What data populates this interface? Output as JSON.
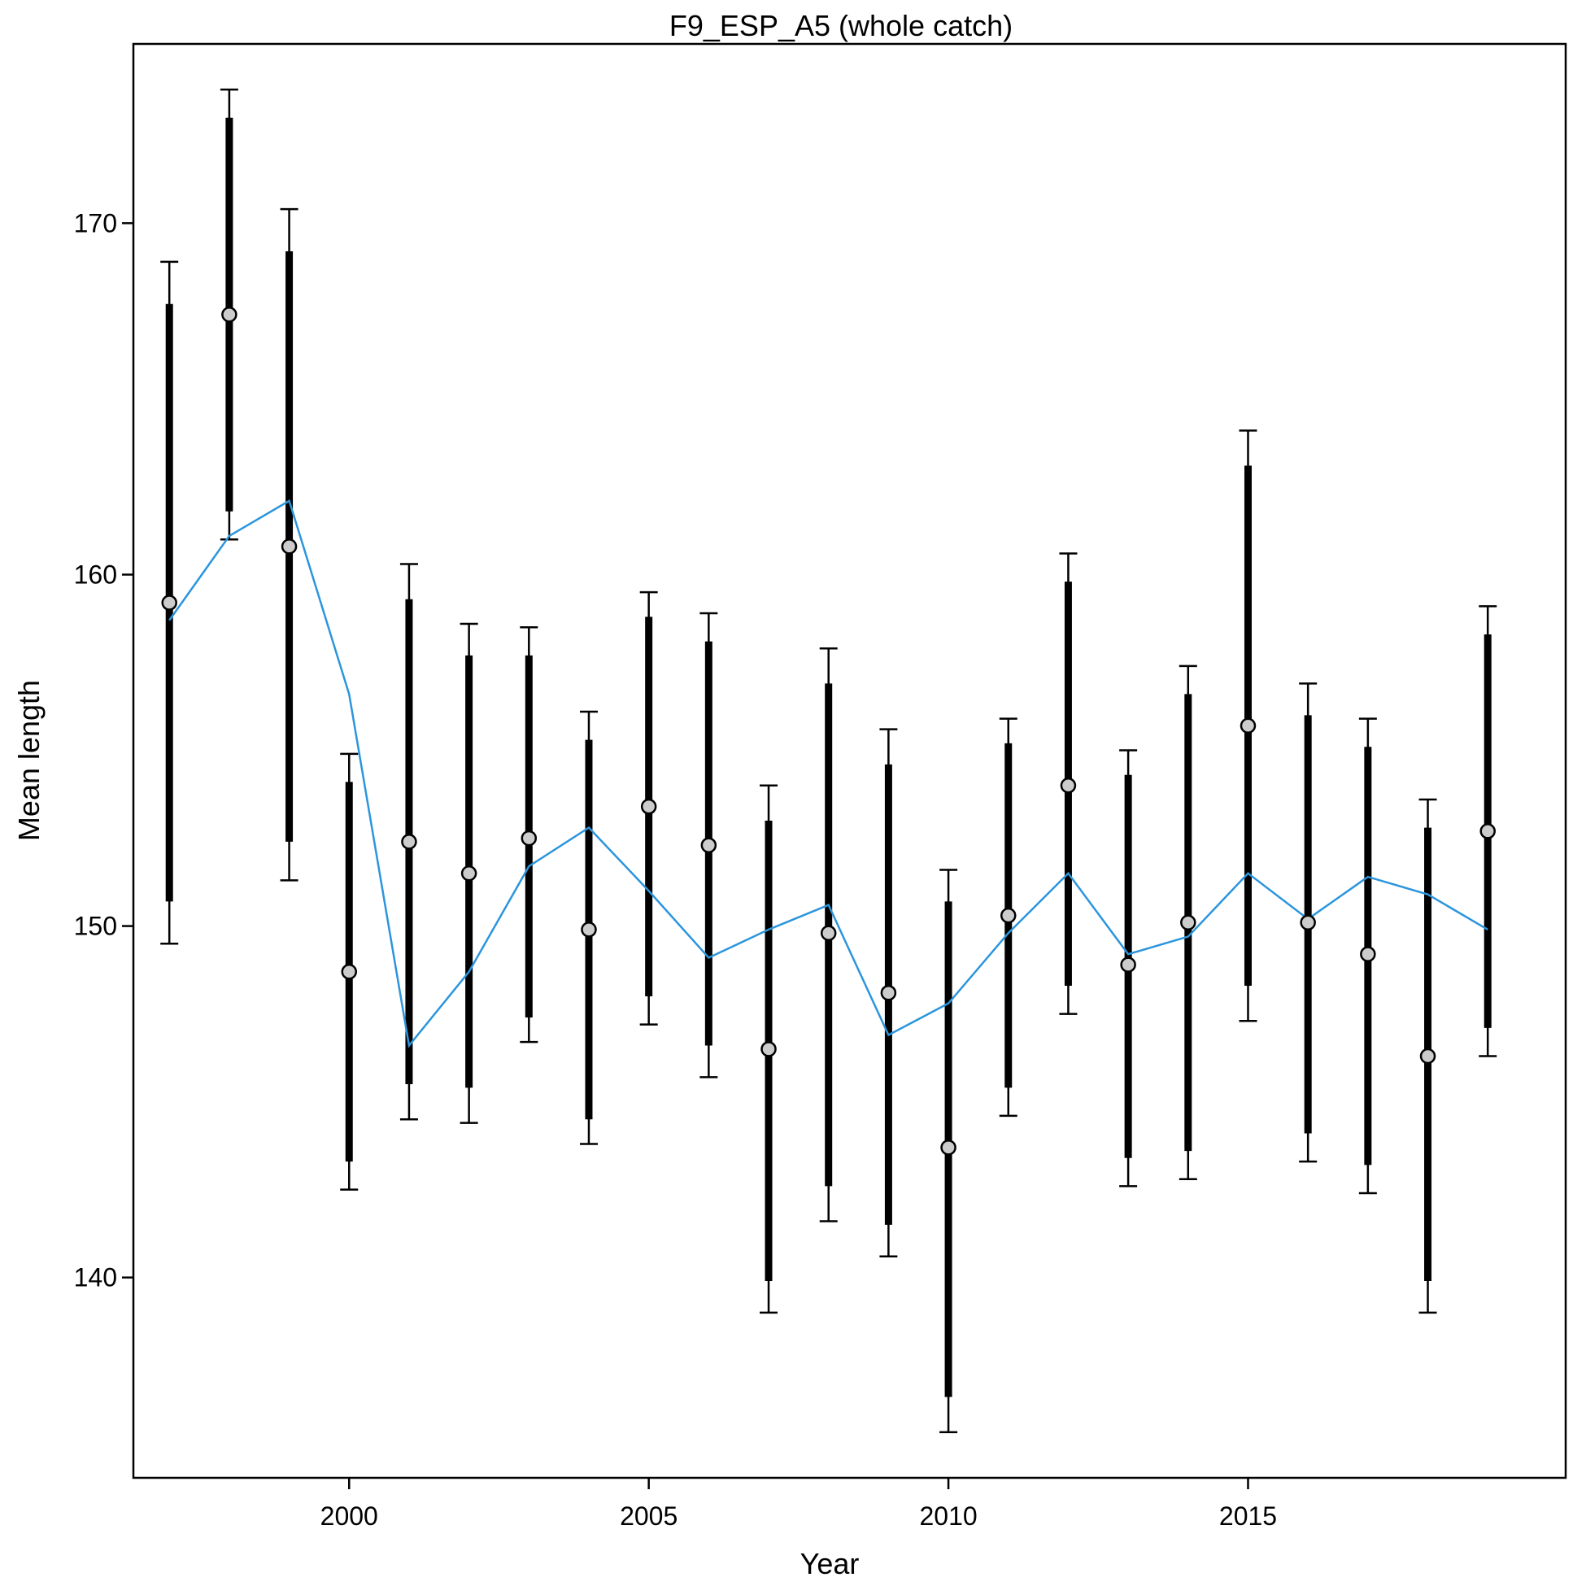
{
  "chart_data": {
    "type": "line",
    "title": "F9_ESP_A5 (whole catch)",
    "xlabel": "Year",
    "ylabel": "Mean length",
    "xlim": [
      1996.4,
      2020.3
    ],
    "ylim": [
      134.3,
      175.1
    ],
    "x_ticks": [
      2000,
      2005,
      2010,
      2015
    ],
    "y_ticks": [
      140,
      150,
      160,
      170
    ],
    "grid": false,
    "legend": "none",
    "colors": {
      "observed": "#000000",
      "point_fill": "#cccccc",
      "expected": "#2b95dd"
    },
    "x": [
      1997,
      1998,
      1999,
      2000,
      2001,
      2002,
      2003,
      2004,
      2005,
      2006,
      2007,
      2008,
      2009,
      2010,
      2011,
      2012,
      2013,
      2014,
      2015,
      2016,
      2017,
      2018,
      2019
    ],
    "series": [
      {
        "role": "observed",
        "values": [
          159.2,
          167.4,
          160.8,
          148.7,
          152.4,
          151.5,
          152.5,
          149.9,
          153.4,
          152.3,
          146.5,
          149.8,
          148.1,
          143.7,
          150.3,
          154.0,
          148.9,
          150.1,
          155.7,
          150.1,
          149.2,
          146.3,
          152.7
        ],
        "inner_low": [
          150.7,
          161.8,
          152.4,
          143.3,
          145.5,
          145.4,
          147.4,
          144.5,
          148.0,
          146.6,
          139.9,
          142.6,
          141.5,
          136.6,
          145.4,
          148.3,
          143.4,
          143.6,
          148.3,
          144.1,
          143.2,
          139.9,
          147.1
        ],
        "inner_high": [
          167.7,
          173.0,
          169.2,
          154.1,
          159.3,
          157.7,
          157.7,
          155.3,
          158.8,
          158.1,
          153.0,
          156.9,
          154.6,
          150.7,
          155.2,
          159.8,
          154.3,
          156.6,
          163.1,
          156.0,
          155.1,
          152.8,
          158.3
        ],
        "outer_low": [
          149.5,
          161.0,
          151.3,
          142.5,
          144.5,
          144.4,
          146.7,
          143.8,
          147.2,
          145.7,
          139.0,
          141.6,
          140.6,
          135.6,
          144.6,
          147.5,
          142.6,
          142.8,
          147.3,
          143.3,
          142.4,
          139.0,
          146.3
        ],
        "outer_high": [
          168.9,
          173.8,
          170.4,
          154.9,
          160.3,
          158.6,
          158.5,
          156.1,
          159.5,
          158.9,
          154.0,
          157.9,
          155.6,
          151.6,
          155.9,
          160.6,
          155.0,
          157.4,
          164.1,
          156.9,
          155.9,
          153.6,
          159.1
        ]
      },
      {
        "role": "expected",
        "values": [
          158.7,
          161.1,
          162.1,
          156.6,
          146.6,
          148.7,
          151.7,
          152.8,
          151.0,
          149.1,
          149.9,
          150.6,
          146.9,
          147.8,
          149.8,
          151.5,
          149.2,
          149.7,
          151.5,
          150.2,
          151.4,
          150.9,
          149.9
        ]
      }
    ]
  }
}
